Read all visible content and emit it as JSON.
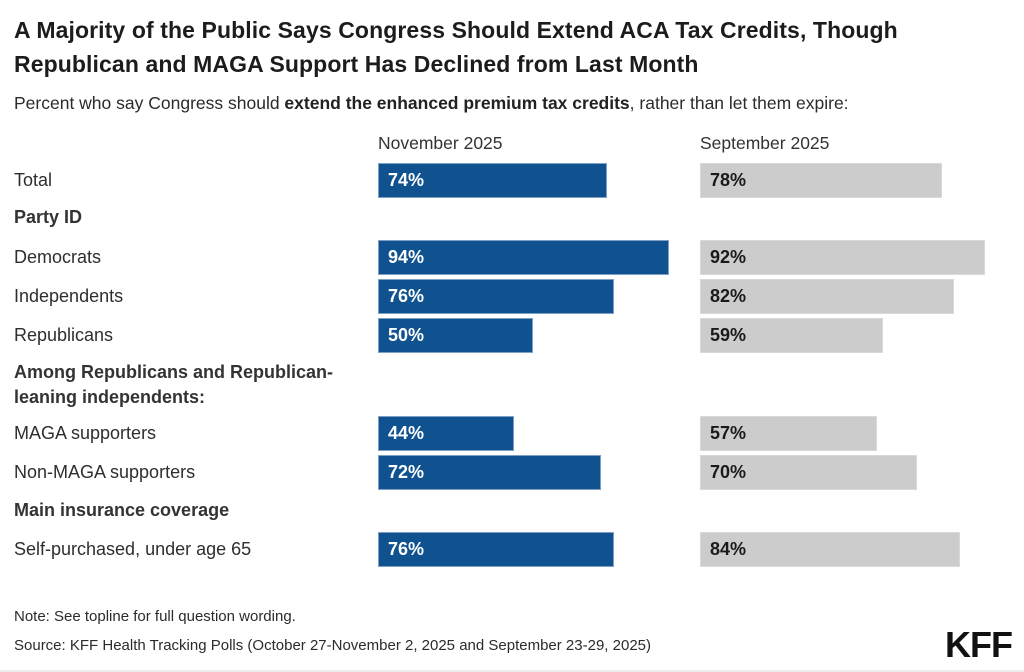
{
  "title": "A Majority of the Public Says Congress Should Extend ACA Tax Credits, Though Republican and MAGA Support Has Declined from Last Month",
  "subtitle": {
    "prefix": "Percent who say Congress should ",
    "bold": "extend the enhanced premium tax credits",
    "suffix": ", rather than let them expire:"
  },
  "columns": {
    "november": "November 2025",
    "september": "September 2025"
  },
  "note": "Note: See topline for full question wording.",
  "source": "Source: KFF Health Tracking Polls (October 27-November 2, 2025 and September 23-29, 2025)",
  "logo": "KFF",
  "colors": {
    "november_bar": "#0F528F",
    "september_bar": "#CCCCCC",
    "bar_label_on_blue": "#FFFFFF",
    "bar_label_on_gray": "#1A1A1A"
  },
  "chart_data": {
    "type": "bar",
    "orientation": "horizontal",
    "title": "A Majority of the Public Says Congress Should Extend ACA Tax Credits, Though Republican and MAGA Support Has Declined from Last Month",
    "value_format": "percent",
    "xlim": [
      0,
      100
    ],
    "legend_position": "column-headers",
    "grid": false,
    "categories": [
      "Total",
      "Democrats",
      "Independents",
      "Republicans",
      "MAGA supporters",
      "Non-MAGA supporters",
      "Self-purchased, under age 65"
    ],
    "series": [
      {
        "name": "November 2025",
        "values": [
          74,
          94,
          76,
          50,
          44,
          72,
          76
        ]
      },
      {
        "name": "September 2025",
        "values": [
          78,
          92,
          82,
          59,
          57,
          70,
          84
        ]
      }
    ],
    "rows": [
      {
        "type": "bar",
        "label": "Total",
        "nov": 74,
        "sep": 78
      },
      {
        "type": "header",
        "label": "Party ID"
      },
      {
        "type": "bar",
        "label": "Democrats",
        "nov": 94,
        "sep": 92
      },
      {
        "type": "bar",
        "label": "Independents",
        "nov": 76,
        "sep": 82
      },
      {
        "type": "bar",
        "label": "Republicans",
        "nov": 50,
        "sep": 59
      },
      {
        "type": "header",
        "label": "Among Republicans and Republican-leaning independents:"
      },
      {
        "type": "bar",
        "label": "MAGA supporters",
        "nov": 44,
        "sep": 57
      },
      {
        "type": "bar",
        "label": "Non-MAGA supporters",
        "nov": 72,
        "sep": 70
      },
      {
        "type": "header",
        "label": "Main insurance coverage"
      },
      {
        "type": "bar",
        "label": "Self-purchased, under age 65",
        "nov": 76,
        "sep": 84
      }
    ]
  }
}
